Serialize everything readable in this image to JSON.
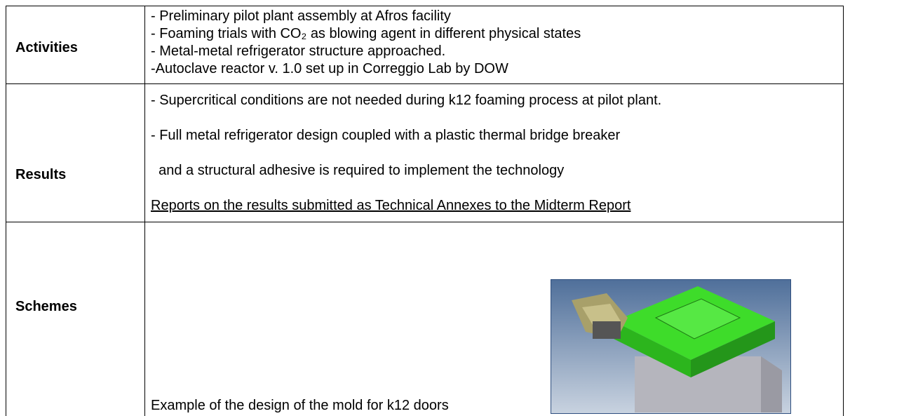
{
  "table": {
    "rows": [
      {
        "label": "Activities",
        "lines": [
          "- Preliminary pilot plant assembly at Afros facility",
          "- Foaming trials with CO₂ as blowing agent in different physical states",
          "- Metal-metal refrigerator structure approached.",
          "-Autoclave reactor v. 1.0 set up in Correggio Lab by DOW"
        ]
      },
      {
        "label": "Results",
        "lines": [
          "- Supercritical conditions are not needed during k12 foaming process at pilot plant.",
          "- Full metal refrigerator design coupled with a plastic thermal bridge breaker",
          "  and a structural adhesive is required to implement the technology",
          "Reports on the results submitted as Technical Annexes to the Midterm Report"
        ]
      },
      {
        "label": "Schemes",
        "lines": [
          "Example of the design of the mold for k12 doors"
        ]
      }
    ]
  }
}
